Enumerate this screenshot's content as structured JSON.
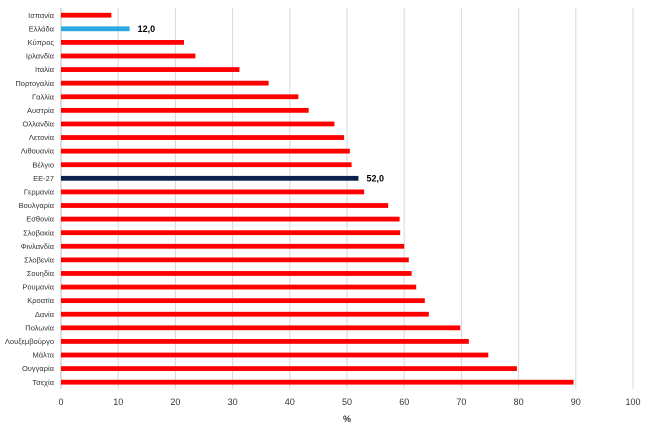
{
  "chart_data": {
    "type": "bar",
    "orientation": "horizontal",
    "categories": [
      "Ισπανία",
      "Ελλάδα",
      "Κύπρος",
      "Ιρλανδία",
      "Ιταλία",
      "Πορτογαλία",
      "Γαλλία",
      "Αυστρία",
      "Ολλανδία",
      "Λετονία",
      "Λιθουανία",
      "Βέλγιο",
      "ΕΕ-27",
      "Γερμανία",
      "Βουλγαρία",
      "Εσθονία",
      "Σλοβακία",
      "Φινλανδία",
      "Σλοβενία",
      "Σουηδία",
      "Ρουμανία",
      "Κροατία",
      "Δανία",
      "Πολωνία",
      "Λουξεμβούργο",
      "Μάλτα",
      "Ουγγαρία",
      "Τσεχία"
    ],
    "values": [
      8.8,
      12.0,
      21.5,
      23.5,
      31.2,
      36.3,
      41.5,
      43.3,
      47.8,
      49.5,
      50.5,
      50.8,
      52.0,
      53.0,
      57.2,
      59.2,
      59.3,
      60.0,
      60.8,
      61.3,
      62.1,
      63.6,
      64.3,
      69.8,
      71.3,
      74.7,
      79.7,
      89.6
    ],
    "data_labels": [
      {
        "category": "Ελλάδα",
        "text": "12,0"
      },
      {
        "category": "ΕΕ-27",
        "text": "52,0"
      }
    ],
    "highlight_colors": {
      "Ελλάδα": "#29a9df",
      "ΕΕ-27": "#0c2150"
    },
    "default_color": "#ff0000",
    "xlabel": "%",
    "ylabel": "",
    "title": "",
    "xlim": [
      0,
      100
    ],
    "xticks": [
      0,
      10,
      20,
      30,
      40,
      50,
      60,
      70,
      80,
      90,
      100
    ],
    "grid": true,
    "legend": "none"
  },
  "colors": {
    "grid": "#d9d9d9",
    "axis": "#bfbfbf"
  }
}
